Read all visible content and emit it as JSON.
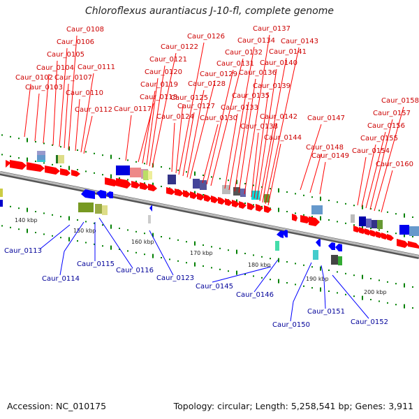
{
  "title": "Chloroflexus aurantiacus J-10-fl, complete genome",
  "footer": {
    "accession": "Accession: NC_010175",
    "info": "Topology: circular; Length: 5,258,541 bp; Genes: 3,911"
  },
  "colors": {
    "forward_gene": "#ff0000",
    "reverse_gene": "#0000ff",
    "forward_label": "#cc0000",
    "reverse_label": "#000099",
    "backbone": "#999999",
    "tick": "#008000"
  },
  "kbp_labels": [
    "140 kbp",
    "150 kbp",
    "160 kbp",
    "170 kbp",
    "180 kbp",
    "190 kbp",
    "200 kbp"
  ],
  "top_labels": [
    "Caur_0102",
    "Caur_0103",
    "Caur_0104",
    "Caur_0105",
    "Caur_0106",
    "Caur_0107",
    "Caur_0108",
    "Caur_0110",
    "Caur_0111",
    "Caur_0112",
    "Caur_0117",
    "Caur_0118",
    "Caur_0119",
    "Caur_0120",
    "Caur_0121",
    "Caur_0122",
    "Caur_0124",
    "Caur_0125",
    "Caur_0126",
    "Caur_0127",
    "Caur_0128",
    "Caur_0129",
    "Caur_0130",
    "Caur_0131",
    "Caur_0132",
    "Caur_0133",
    "Caur_0134",
    "Caur_0135",
    "Caur_0136",
    "Caur_0137",
    "Caur_0138",
    "Caur_0139",
    "Caur_0140",
    "Caur_0141",
    "Caur_0142",
    "Caur_0143",
    "Caur_0144",
    "Caur_0147",
    "Caur_0148",
    "Caur_0149",
    "Caur_0154",
    "Caur_0155",
    "Caur_0156",
    "Caur_0157",
    "Caur_0158",
    "Caur_0160"
  ],
  "bottom_labels": [
    "Caur_0113",
    "Caur_0114",
    "Caur_0115",
    "Caur_0116",
    "Caur_0123",
    "Caur_0145",
    "Caur_0146",
    "Caur_0150",
    "Caur_0151",
    "Caur_0152"
  ]
}
